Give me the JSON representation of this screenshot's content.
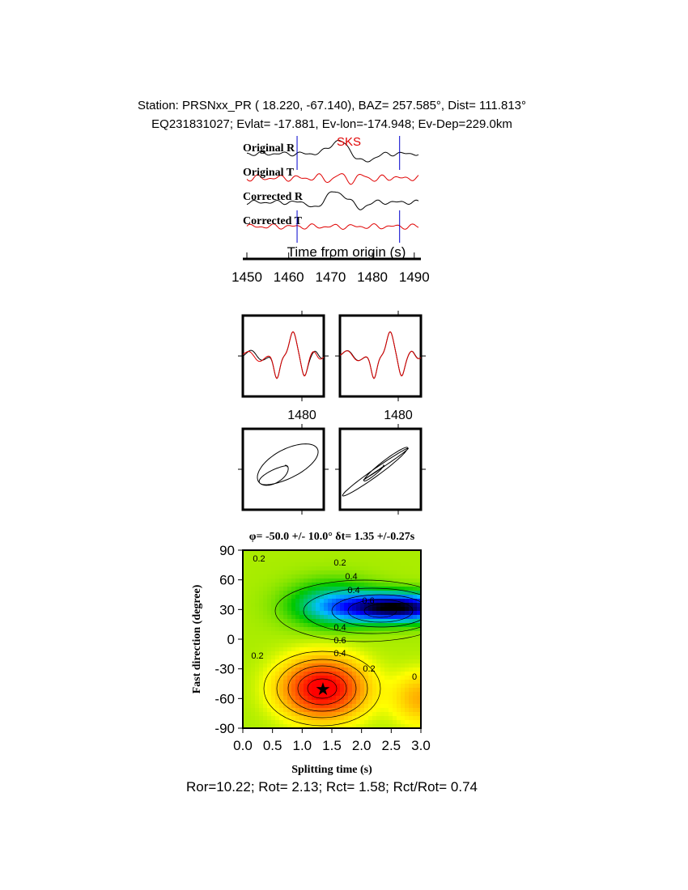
{
  "header": {
    "line1": "Station: PRSNxx_PR (  18.220,  -67.140), BAZ=  257.585°, Dist=  111.813°",
    "line2": "EQ231831027; Evlat= -17.881, Ev-lon=-174.948; Ev-Dep=229.0km"
  },
  "waveforms": {
    "phase_label": "SKS",
    "xlabel": "Time from origin (s)",
    "traces": [
      {
        "label": "Original R",
        "color": "#000000"
      },
      {
        "label": "Original T",
        "color": "#e00000"
      },
      {
        "label": "Corrected R",
        "color": "#000000"
      },
      {
        "label": "Corrected T",
        "color": "#e00000"
      }
    ],
    "window_markers": [
      1462,
      1486.5
    ],
    "xticks": [
      "1450",
      "1460",
      "1470",
      "1480",
      "1490"
    ]
  },
  "comparison": {
    "tick_labels": [
      "1480",
      "1480"
    ]
  },
  "result": {
    "title": "φ= -50.0 +/- 10.0° δt= 1.35 +/-0.27s",
    "footer": "Ror=10.22; Rot= 2.13; Rct= 1.58; Rct/Rot= 0.74"
  },
  "chart_data": {
    "type": "heatmap",
    "title": "φ= -50.0 +/- 10.0° δt= 1.35 +/-0.27s",
    "xlabel": "Splitting time (s)",
    "ylabel": "Fast direction (degree)",
    "xlim": [
      0,
      3
    ],
    "ylim": [
      -90,
      90
    ],
    "xticks": [
      "0.0",
      "0.5",
      "1.0",
      "1.5",
      "2.0",
      "2.5",
      "3.0"
    ],
    "yticks": [
      "90",
      "60",
      "30",
      "0",
      "-30",
      "-60",
      "-90"
    ],
    "best_fit": {
      "phi": -50.0,
      "dt": 1.35
    },
    "contour_labels": [
      "0.2",
      "0.2",
      "0.2",
      "0.4",
      "0.4",
      "0.6",
      "0.4",
      "0.6",
      "0.4",
      "0.2",
      "0"
    ],
    "colormap": [
      "#ff0000",
      "#ff8000",
      "#ffff00",
      "#00c000",
      "#00c0ff",
      "#0000ff",
      "#000000"
    ]
  }
}
